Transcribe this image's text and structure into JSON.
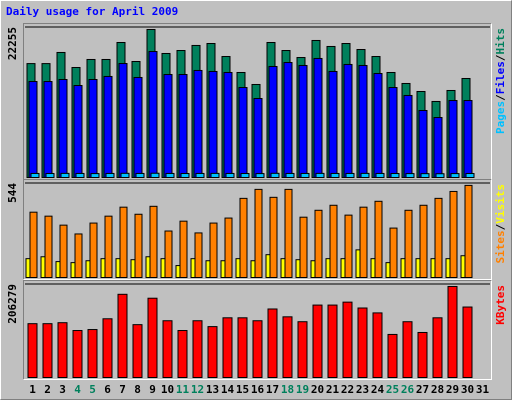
{
  "chart_data": [
    {
      "type": "bar",
      "title": "Daily usage for April 2009",
      "categories": [
        "1",
        "2",
        "3",
        "4",
        "5",
        "6",
        "7",
        "8",
        "9",
        "10",
        "11",
        "12",
        "13",
        "14",
        "15",
        "16",
        "17",
        "18",
        "19",
        "20",
        "21",
        "22",
        "23",
        "24",
        "25",
        "26",
        "27",
        "28",
        "29",
        "30",
        "31"
      ],
      "category_colors": [
        "#000000",
        "#000000",
        "#000000",
        "#00805c",
        "#00805c",
        "#000000",
        "#000000",
        "#000000",
        "#000000",
        "#000000",
        "#00805c",
        "#00805c",
        "#000000",
        "#000000",
        "#000000",
        "#000000",
        "#000000",
        "#00805c",
        "#00805c",
        "#000000",
        "#000000",
        "#000000",
        "#000000",
        "#000000",
        "#00805c",
        "#00805c",
        "#000000",
        "#000000",
        "#000000",
        "#000000",
        "#000000"
      ],
      "legend_separator": "/",
      "ylim": [
        0,
        22255
      ],
      "yticks": [
        22255
      ],
      "series": [
        {
          "name": "Hits",
          "color": "#00805c",
          "values": [
            16900,
            16900,
            18550,
            16320,
            17510,
            17510,
            20030,
            17210,
            21960,
            18400,
            18840,
            19590,
            19880,
            17950,
            15580,
            13800,
            20030,
            18840,
            17800,
            20330,
            19440,
            19880,
            18990,
            17950,
            15580,
            13950,
            12760,
            11280,
            12910,
            14690,
            null
          ]
        },
        {
          "name": "Files",
          "color": "#0000ff",
          "values": [
            14240,
            14240,
            14540,
            13650,
            14540,
            14990,
            16910,
            14840,
            18690,
            15280,
            15280,
            15880,
            15730,
            15580,
            13350,
            11720,
            16470,
            17060,
            16620,
            17660,
            15730,
            16770,
            16620,
            15430,
            13350,
            12170,
            9940,
            8900,
            11420,
            11420,
            null
          ]
        },
        {
          "name": "Pages",
          "color": "#00c0ff",
          "values": [
            600,
            590,
            610,
            600,
            580,
            600,
            620,
            600,
            630,
            600,
            590,
            600,
            610,
            600,
            590,
            580,
            620,
            600,
            600,
            610,
            600,
            600,
            610,
            600,
            590,
            580,
            570,
            560,
            580,
            590,
            null
          ]
        }
      ]
    },
    {
      "type": "bar",
      "ylim": [
        0,
        544
      ],
      "yticks": [
        544
      ],
      "series": [
        {
          "name": "Visits",
          "color": "#ffff00",
          "values": [
            109,
            120,
            92,
            86,
            97,
            109,
            109,
            103,
            120,
            109,
            69,
            109,
            97,
            97,
            109,
            97,
            132,
            109,
            103,
            97,
            109,
            109,
            160,
            109,
            86,
            109,
            109,
            109,
            109,
            126,
            null
          ]
        },
        {
          "name": "Sites",
          "color": "#ff8000",
          "values": [
            378,
            355,
            303,
            252,
            315,
            355,
            407,
            366,
            412,
            269,
            326,
            258,
            315,
            344,
            458,
            510,
            464,
            510,
            349,
            389,
            418,
            361,
            407,
            441,
            286,
            389,
            418,
            458,
            498,
            533,
            null
          ]
        }
      ]
    },
    {
      "type": "bar",
      "ylim": [
        0,
        206279
      ],
      "yticks": [
        206279
      ],
      "series": [
        {
          "name": "KBytes",
          "color": "#ff0000",
          "values": [
            119400,
            119400,
            121580,
            104210,
            106380,
            130260,
            184540,
            117230,
            175850,
            125920,
            104210,
            125920,
            112890,
            132430,
            132430,
            125920,
            151970,
            134600,
            123750,
            160650,
            160650,
            167170,
            154140,
            143290,
            95520,
            123750,
            99870,
            132430,
            201900,
            156310,
            null
          ]
        }
      ]
    }
  ]
}
